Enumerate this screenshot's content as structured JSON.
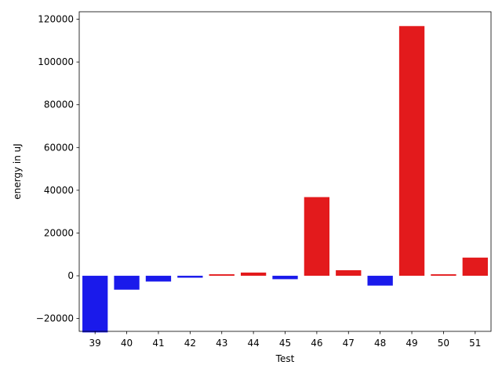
{
  "colors": {
    "positive": "#e31a1c",
    "negative": "#1a1aeb",
    "axis": "#000000",
    "background": "#ffffff"
  },
  "chart_data": {
    "type": "bar",
    "title": "",
    "xlabel": "Test",
    "ylabel": "energy in uJ",
    "categories": [
      "39",
      "40",
      "41",
      "42",
      "43",
      "44",
      "45",
      "46",
      "47",
      "48",
      "49",
      "50",
      "51"
    ],
    "values": [
      -26500,
      -6500,
      -2700,
      -900,
      700,
      1500,
      -1600,
      36800,
      2600,
      -4600,
      116800,
      700,
      8500
    ],
    "ylim": [
      -26000,
      123500
    ],
    "yticks": [
      -20000,
      0,
      20000,
      40000,
      60000,
      80000,
      100000,
      120000
    ],
    "ytick_labels": [
      "−20000",
      "0",
      "20000",
      "40000",
      "60000",
      "80000",
      "100000",
      "120000"
    ],
    "grid": false,
    "legend": "none"
  }
}
